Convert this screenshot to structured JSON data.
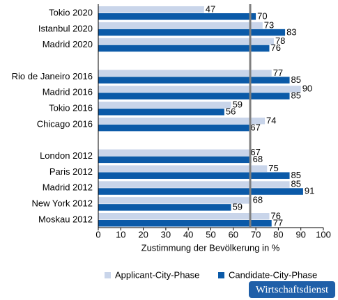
{
  "chart_data": {
    "type": "hbar",
    "xlabel": "Zustimmung der Bevölkerung in %",
    "categories": [
      "Tokio 2020",
      "Istanbul 2020",
      "Madrid 2020",
      null,
      "Rio de Janeiro 2016",
      "Madrid 2016",
      "Tokio 2016",
      "Chicago 2016",
      null,
      "London 2012",
      "Paris 2012",
      "Madrid 2012",
      "New York 2012",
      "Moskau 2012"
    ],
    "series": [
      {
        "name": "Applicant-City-Phase",
        "color": "#c9d5ea",
        "values": [
          47,
          73,
          78,
          null,
          77,
          90,
          59,
          74,
          null,
          67,
          75,
          85,
          68,
          76
        ]
      },
      {
        "name": "Candidate-City-Phase",
        "color": "#0b5aa8",
        "values": [
          70,
          83,
          76,
          null,
          85,
          85,
          56,
          67,
          null,
          68,
          85,
          91,
          59,
          77
        ]
      }
    ],
    "xlim": [
      0,
      100
    ],
    "xticks": [
      0,
      10,
      20,
      30,
      40,
      50,
      60,
      70,
      80,
      90,
      100
    ],
    "reference_line": 67.5,
    "reference_color": "#7f7f7f",
    "legend": "bottom",
    "badge": "Wirtschaftsdienst"
  }
}
